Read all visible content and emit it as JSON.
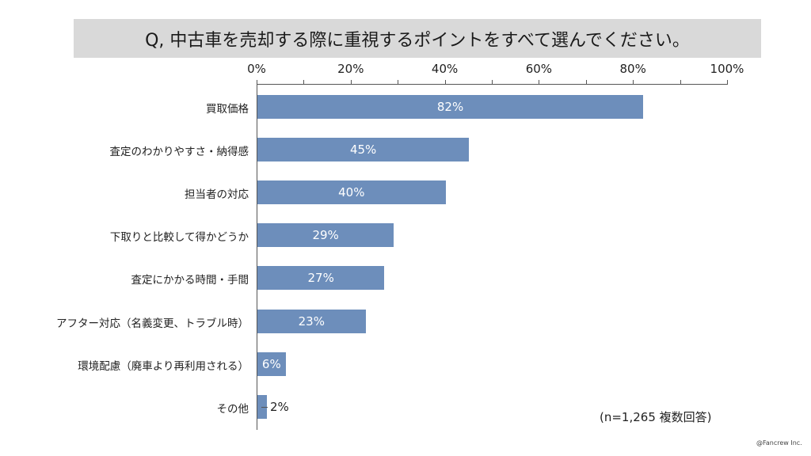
{
  "title": "Q, 中古車を売却する際に重視するポイントをすべて選んでください。",
  "axis": {
    "ticks": [
      "0%",
      "20%",
      "40%",
      "60%",
      "80%",
      "100%"
    ]
  },
  "bars": [
    {
      "label": "買取価格",
      "value": 82,
      "display": "82%"
    },
    {
      "label": "査定のわかりやすさ・納得感",
      "value": 45,
      "display": "45%"
    },
    {
      "label": "担当者の対応",
      "value": 40,
      "display": "40%"
    },
    {
      "label": "下取りと比較して得かどうか",
      "value": 29,
      "display": "29%"
    },
    {
      "label": "査定にかかる時間・手間",
      "value": 27,
      "display": "27%"
    },
    {
      "label": "アフター対応（名義変更、トラブル時）",
      "value": 23,
      "display": "23%"
    },
    {
      "label": "環境配慮（廃車より再利用される）",
      "value": 6,
      "display": "6%"
    },
    {
      "label": "その他",
      "value": 2,
      "display": "2%"
    }
  ],
  "note": "(n=1,265 複数回答)",
  "credit": "@Fancrew Inc.",
  "colors": {
    "bar": "#6d8ebb",
    "title_bg": "#d9d9d9"
  },
  "chart_data": {
    "type": "bar",
    "orientation": "horizontal",
    "title": "Q, 中古車を売却する際に重視するポイントをすべて選んでください。",
    "categories": [
      "買取価格",
      "査定のわかりやすさ・納得感",
      "担当者の対応",
      "下取りと比較して得かどうか",
      "査定にかかる時間・手間",
      "アフター対応（名義変更、トラブル時）",
      "環境配慮（廃車より再利用される）",
      "その他"
    ],
    "values": [
      82,
      45,
      40,
      29,
      27,
      23,
      6,
      2
    ],
    "xlabel": "",
    "ylabel": "",
    "xlim": [
      0,
      100
    ],
    "x_tick_labels": [
      "0%",
      "20%",
      "40%",
      "60%",
      "80%",
      "100%"
    ],
    "minor_ticks_every": 10,
    "grid": false,
    "legend": null,
    "annotations": [
      "(n=1,265 複数回答)",
      "@Fancrew Inc."
    ]
  }
}
